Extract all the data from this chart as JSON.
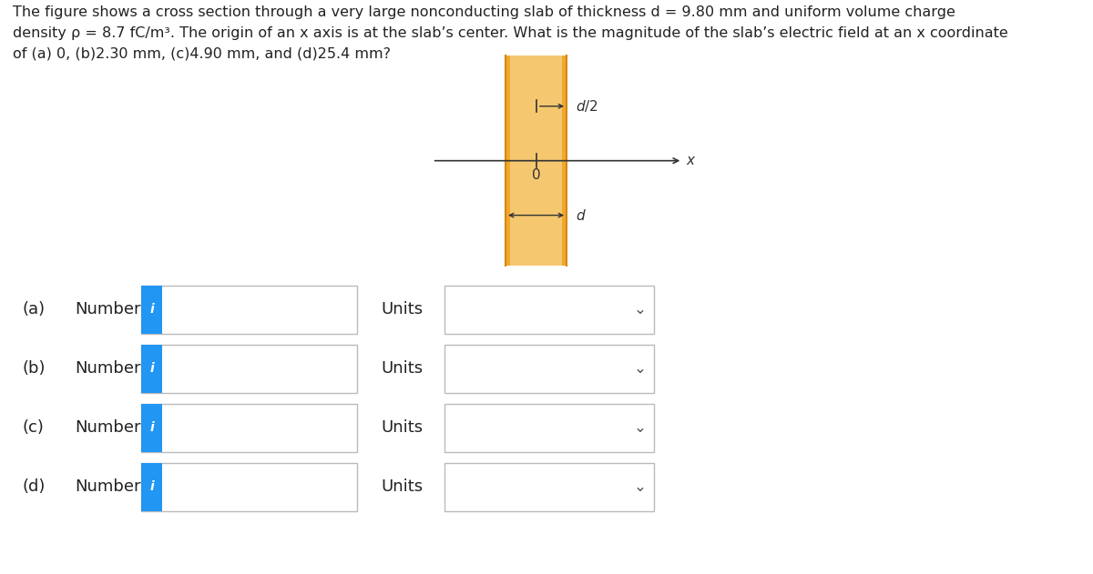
{
  "title_text": "The figure shows a cross section through a very large nonconducting slab of thickness d = 9.80 mm and uniform volume charge\ndensity ρ = 8.7 fC/m³. The origin of an x axis is at the slab’s center. What is the magnitude of the slab’s electric field at an x coordinate\nof (a) 0, (b)2.30 mm, (c)4.90 mm, and (d)25.4 mm?",
  "bg_color": "#ffffff",
  "slab_fill": "#f5c870",
  "slab_edge": "#d4890a",
  "slab_gradient_left": "#f0a830",
  "rows": [
    {
      "label": "(a)",
      "text": "Number",
      "icon": "i",
      "units_label": "Units"
    },
    {
      "label": "(b)",
      "text": "Number",
      "icon": "i",
      "units_label": "Units"
    },
    {
      "label": "(c)",
      "text": "Number",
      "icon": "i",
      "units_label": "Units"
    },
    {
      "label": "(d)",
      "text": "Number",
      "icon": "i",
      "units_label": "Units"
    }
  ],
  "icon_color": "#2196F3",
  "input_border_color": "#bbbbbb",
  "text_color": "#222222",
  "label_fontsize": 13,
  "title_fontsize": 11.5,
  "diag_label_fontsize": 11,
  "chevron_color": "#555555",
  "axis_color": "#333333"
}
